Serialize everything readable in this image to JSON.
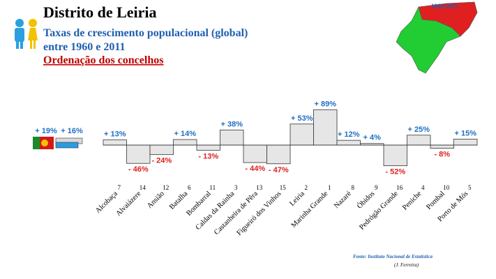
{
  "header": {
    "title": "Distrito de Leiria",
    "subtitle1": "Taxas de crescimento populacional (global)",
    "subtitle2": "entre 1960 e 2011",
    "subtitle3": "Ordenação dos concelhos",
    "map_label": "1960-2011"
  },
  "chart_data": {
    "type": "bar",
    "categories": [
      "Alcobaça",
      "Alvaiázere",
      "Ansião",
      "Batalha",
      "Bombarral",
      "Caldas da Rainha",
      "Castanheira de Pêra",
      "Figueiró dos Vinhos",
      "Leiria",
      "Marinha Grande",
      "Nazaré",
      "Óbidos",
      "Pedrógão Grande",
      "Peniche",
      "Pombal",
      "Porto de Mós"
    ],
    "ranks": [
      7,
      14,
      12,
      6,
      11,
      3,
      13,
      15,
      2,
      1,
      8,
      9,
      16,
      4,
      10,
      5
    ],
    "values": [
      13,
      -46,
      -24,
      14,
      -13,
      38,
      -44,
      -47,
      53,
      89,
      12,
      4,
      -52,
      25,
      -8,
      15
    ],
    "value_labels": [
      "+ 13%",
      "- 46%",
      "- 24%",
      "+ 14%",
      "- 13%",
      "+ 38%",
      "- 44%",
      "- 47%",
      "+ 53%",
      "+ 89%",
      "+ 12%",
      "+ 4%",
      "- 52%",
      "+ 25%",
      "- 8%",
      "+ 15%"
    ],
    "reference_values": [
      19,
      16
    ],
    "reference_labels": [
      "+ 19%",
      "+ 16%"
    ],
    "reference_colors": [
      "#d9d9d9",
      "#2b9be0"
    ],
    "color": "#e6e6e6",
    "positive_label_color": "#1f6fc5",
    "negative_label_color": "#e02020"
  },
  "footer": {
    "source": "Fonte: Instituto Nacional de Estatística",
    "author": "(J. Ferreira)"
  }
}
